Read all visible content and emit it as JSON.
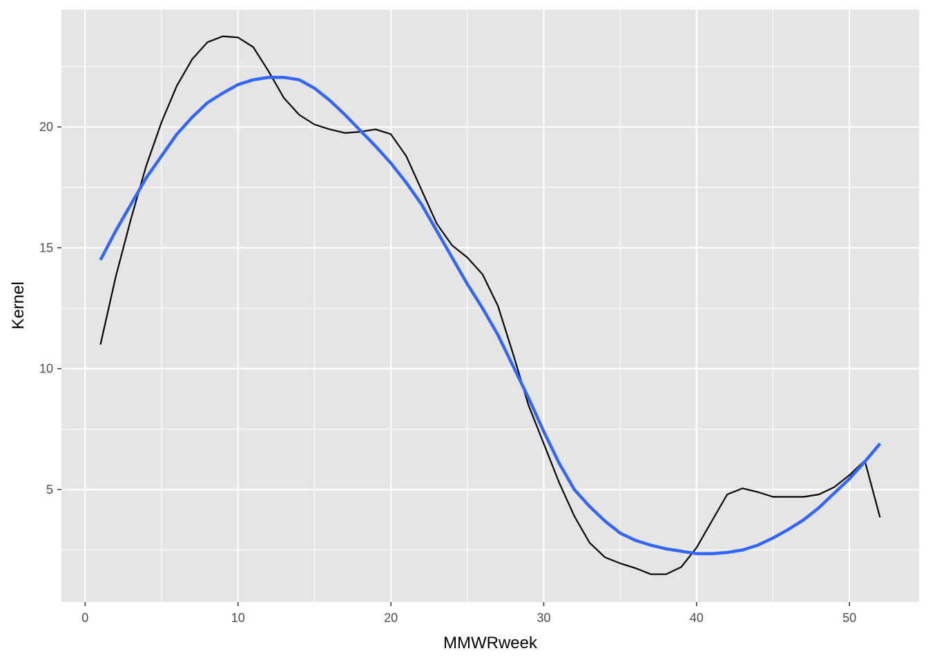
{
  "chart_data": {
    "type": "line",
    "title": "",
    "xlabel": "MMWRweek",
    "ylabel": "Kernel",
    "xlim": [
      -1.55,
      54.55
    ],
    "ylim": [
      0.35,
      24.85
    ],
    "x_ticks": [
      0,
      10,
      20,
      30,
      40,
      50
    ],
    "x_tick_labels": [
      "0",
      "10",
      "20",
      "30",
      "40",
      "50"
    ],
    "y_ticks": [
      5,
      10,
      15,
      20
    ],
    "y_tick_labels": [
      "5",
      "10",
      "15",
      "20"
    ],
    "x_minor": [
      5,
      15,
      25,
      35,
      45
    ],
    "y_minor": [
      2.5,
      7.5,
      12.5,
      17.5,
      22.5
    ],
    "grid": true,
    "legend": "none",
    "colors": {
      "panel": "#e5e5e5",
      "grid": "#ffffff",
      "kernel_line": "#000000",
      "smooth_line": "#3366ff"
    },
    "series": [
      {
        "style": "thin-black",
        "x": [
          1,
          2,
          3,
          4,
          5,
          6,
          7,
          8,
          9,
          10,
          11,
          12,
          13,
          14,
          15,
          16,
          17,
          18,
          19,
          20,
          21,
          22,
          23,
          24,
          25,
          26,
          27,
          28,
          29,
          30,
          31,
          32,
          33,
          34,
          35,
          36,
          37,
          38,
          39,
          40,
          41,
          42,
          43,
          44,
          45,
          46,
          47,
          48,
          49,
          50,
          51,
          52
        ],
        "values": [
          11.0,
          13.8,
          16.2,
          18.4,
          20.2,
          21.7,
          22.8,
          23.5,
          23.75,
          23.7,
          23.3,
          22.3,
          21.2,
          20.5,
          20.1,
          19.9,
          19.75,
          19.8,
          19.9,
          19.7,
          18.8,
          17.4,
          16.0,
          15.1,
          14.6,
          13.9,
          12.6,
          10.6,
          8.5,
          6.9,
          5.3,
          3.9,
          2.8,
          2.2,
          1.95,
          1.75,
          1.5,
          1.5,
          1.8,
          2.6,
          3.7,
          4.8,
          5.05,
          4.9,
          4.7,
          4.7,
          4.7,
          4.8,
          5.1,
          5.6,
          6.2,
          3.85
        ]
      },
      {
        "style": "thick-blue",
        "x": [
          1,
          2,
          3,
          4,
          5,
          6,
          7,
          8,
          9,
          10,
          11,
          12,
          13,
          14,
          15,
          16,
          17,
          18,
          19,
          20,
          21,
          22,
          23,
          24,
          25,
          26,
          27,
          28,
          29,
          30,
          31,
          32,
          33,
          34,
          35,
          36,
          37,
          38,
          39,
          40,
          41,
          42,
          43,
          44,
          45,
          46,
          47,
          48,
          49,
          50,
          51,
          52
        ],
        "values": [
          14.5,
          15.7,
          16.8,
          17.9,
          18.8,
          19.7,
          20.4,
          21.0,
          21.4,
          21.75,
          21.95,
          22.05,
          22.05,
          21.95,
          21.6,
          21.1,
          20.5,
          19.85,
          19.2,
          18.5,
          17.7,
          16.8,
          15.7,
          14.6,
          13.5,
          12.5,
          11.4,
          10.1,
          8.8,
          7.4,
          6.1,
          5.0,
          4.3,
          3.7,
          3.2,
          2.9,
          2.7,
          2.55,
          2.45,
          2.35,
          2.35,
          2.4,
          2.5,
          2.7,
          3.0,
          3.35,
          3.75,
          4.25,
          4.85,
          5.45,
          6.15,
          6.9
        ]
      }
    ]
  }
}
